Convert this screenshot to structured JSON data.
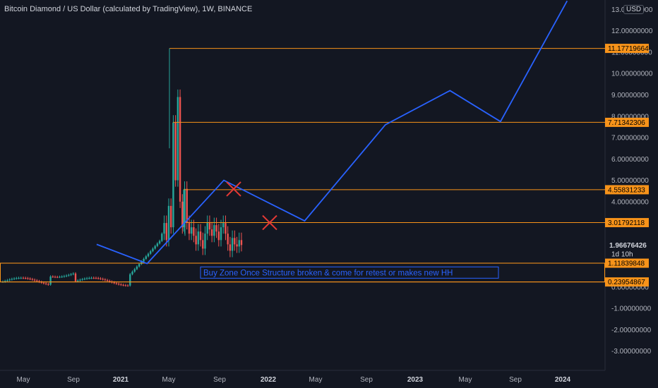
{
  "header": {
    "title": "Bitcoin Diamond / US Dollar (calculated by TradingView), 1W, BINANCE",
    "currency": "USD"
  },
  "chart_data": {
    "type": "candlestick",
    "y_axis": {
      "min": -3.5,
      "max": 13.2,
      "ticks": [
        {
          "value": 13.0,
          "label": "13.00000000"
        },
        {
          "value": 12.0,
          "label": "12.00000000"
        },
        {
          "value": 11.0,
          "label": "11.00000000"
        },
        {
          "value": 10.0,
          "label": "10.00000000"
        },
        {
          "value": 9.0,
          "label": "9.00000000"
        },
        {
          "value": 8.0,
          "label": "8.00000000"
        },
        {
          "value": 7.0,
          "label": "7.00000000"
        },
        {
          "value": 6.0,
          "label": "6.00000000"
        },
        {
          "value": 5.0,
          "label": "5.00000000"
        },
        {
          "value": 4.0,
          "label": "4.00000000"
        },
        {
          "value": 0.0,
          "label": "0.00000000"
        },
        {
          "value": -1.0,
          "label": "-1.00000000"
        },
        {
          "value": -2.0,
          "label": "-2.00000000"
        },
        {
          "value": -3.0,
          "label": "-3.00000000"
        }
      ]
    },
    "x_axis": {
      "ticks": [
        {
          "label": "May",
          "bold": false
        },
        {
          "label": "Sep",
          "bold": false
        },
        {
          "label": "2021",
          "bold": true
        },
        {
          "label": "May",
          "bold": false
        },
        {
          "label": "Sep",
          "bold": false
        },
        {
          "label": "2022",
          "bold": true
        },
        {
          "label": "May",
          "bold": false
        },
        {
          "label": "Sep",
          "bold": false
        },
        {
          "label": "2023",
          "bold": true
        },
        {
          "label": "May",
          "bold": false
        },
        {
          "label": "Sep",
          "bold": false
        },
        {
          "label": "2024",
          "bold": true
        }
      ]
    },
    "levels": [
      {
        "value": 11.17719664,
        "label": "11.17719664"
      },
      {
        "value": 7.71342306,
        "label": "7.71342306"
      },
      {
        "value": 4.55831233,
        "label": "4.55831233"
      },
      {
        "value": 3.01792118,
        "label": "3.01792118"
      },
      {
        "value": 1.11839848,
        "label": "1.11839848"
      },
      {
        "value": 0.23954867,
        "label": "0.23954867"
      }
    ],
    "current_price": {
      "value": 1.96676426,
      "label": "1.96676426",
      "countdown": "1d 10h"
    },
    "annotation": "Buy Zone Once Structure broken & come for retest or makes new HH",
    "projection": [
      [
        -0.85,
        2.0
      ],
      [
        -0.6,
        1.1
      ],
      [
        -0.22,
        5.0
      ],
      [
        0.18,
        3.1
      ],
      [
        0.58,
        7.6
      ],
      [
        0.9,
        9.2
      ],
      [
        1.15,
        7.75
      ],
      [
        1.48,
        13.4
      ]
    ],
    "colors": {
      "up": "#26a69a",
      "down": "#ef5350",
      "level": "#f7931a",
      "projection": "#2962ff",
      "cross": "#e53935",
      "background": "#131722"
    }
  }
}
